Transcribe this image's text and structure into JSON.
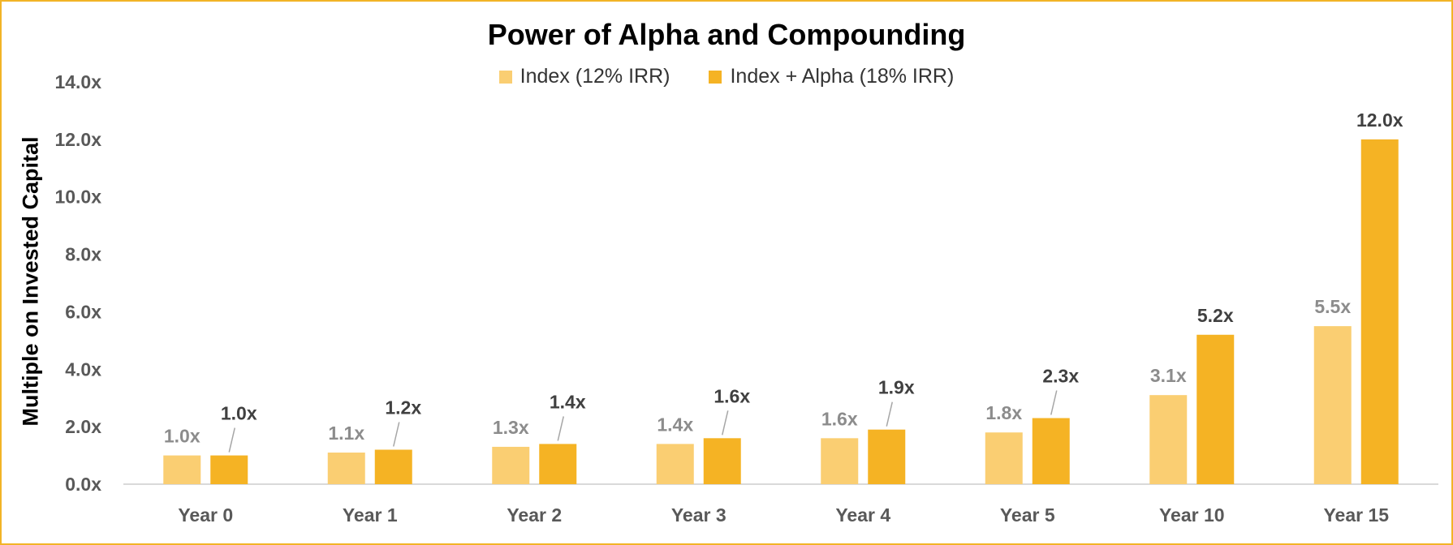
{
  "chart_data": {
    "type": "bar",
    "title": "Power of Alpha and Compounding",
    "ylabel": "Multiple on Invested Capital",
    "xlabel": "",
    "ylim": [
      0,
      14
    ],
    "yticks": [
      "0.0x",
      "2.0x",
      "4.0x",
      "6.0x",
      "8.0x",
      "10.0x",
      "12.0x",
      "14.0x"
    ],
    "grid": false,
    "legend_position": "top-center",
    "categories": [
      "Year 0",
      "Year 1",
      "Year 2",
      "Year 3",
      "Year 4",
      "Year 5",
      "Year 10",
      "Year 15"
    ],
    "series": [
      {
        "name": "Index (12% IRR)",
        "color": "#FACE72",
        "values": [
          1.0,
          1.1,
          1.3,
          1.4,
          1.6,
          1.8,
          3.1,
          5.5
        ],
        "labels": [
          "1.0x",
          "1.1x",
          "1.3x",
          "1.4x",
          "1.6x",
          "1.8x",
          "3.1x",
          "5.5x"
        ]
      },
      {
        "name": "Index + Alpha (18% IRR)",
        "color": "#F5B324",
        "values": [
          1.0,
          1.2,
          1.4,
          1.6,
          1.9,
          2.3,
          5.2,
          12.0
        ],
        "labels": [
          "1.0x",
          "1.2x",
          "1.4x",
          "1.6x",
          "1.9x",
          "2.3x",
          "5.2x",
          "12.0x"
        ]
      }
    ]
  },
  "frame_color": "#F2B427"
}
